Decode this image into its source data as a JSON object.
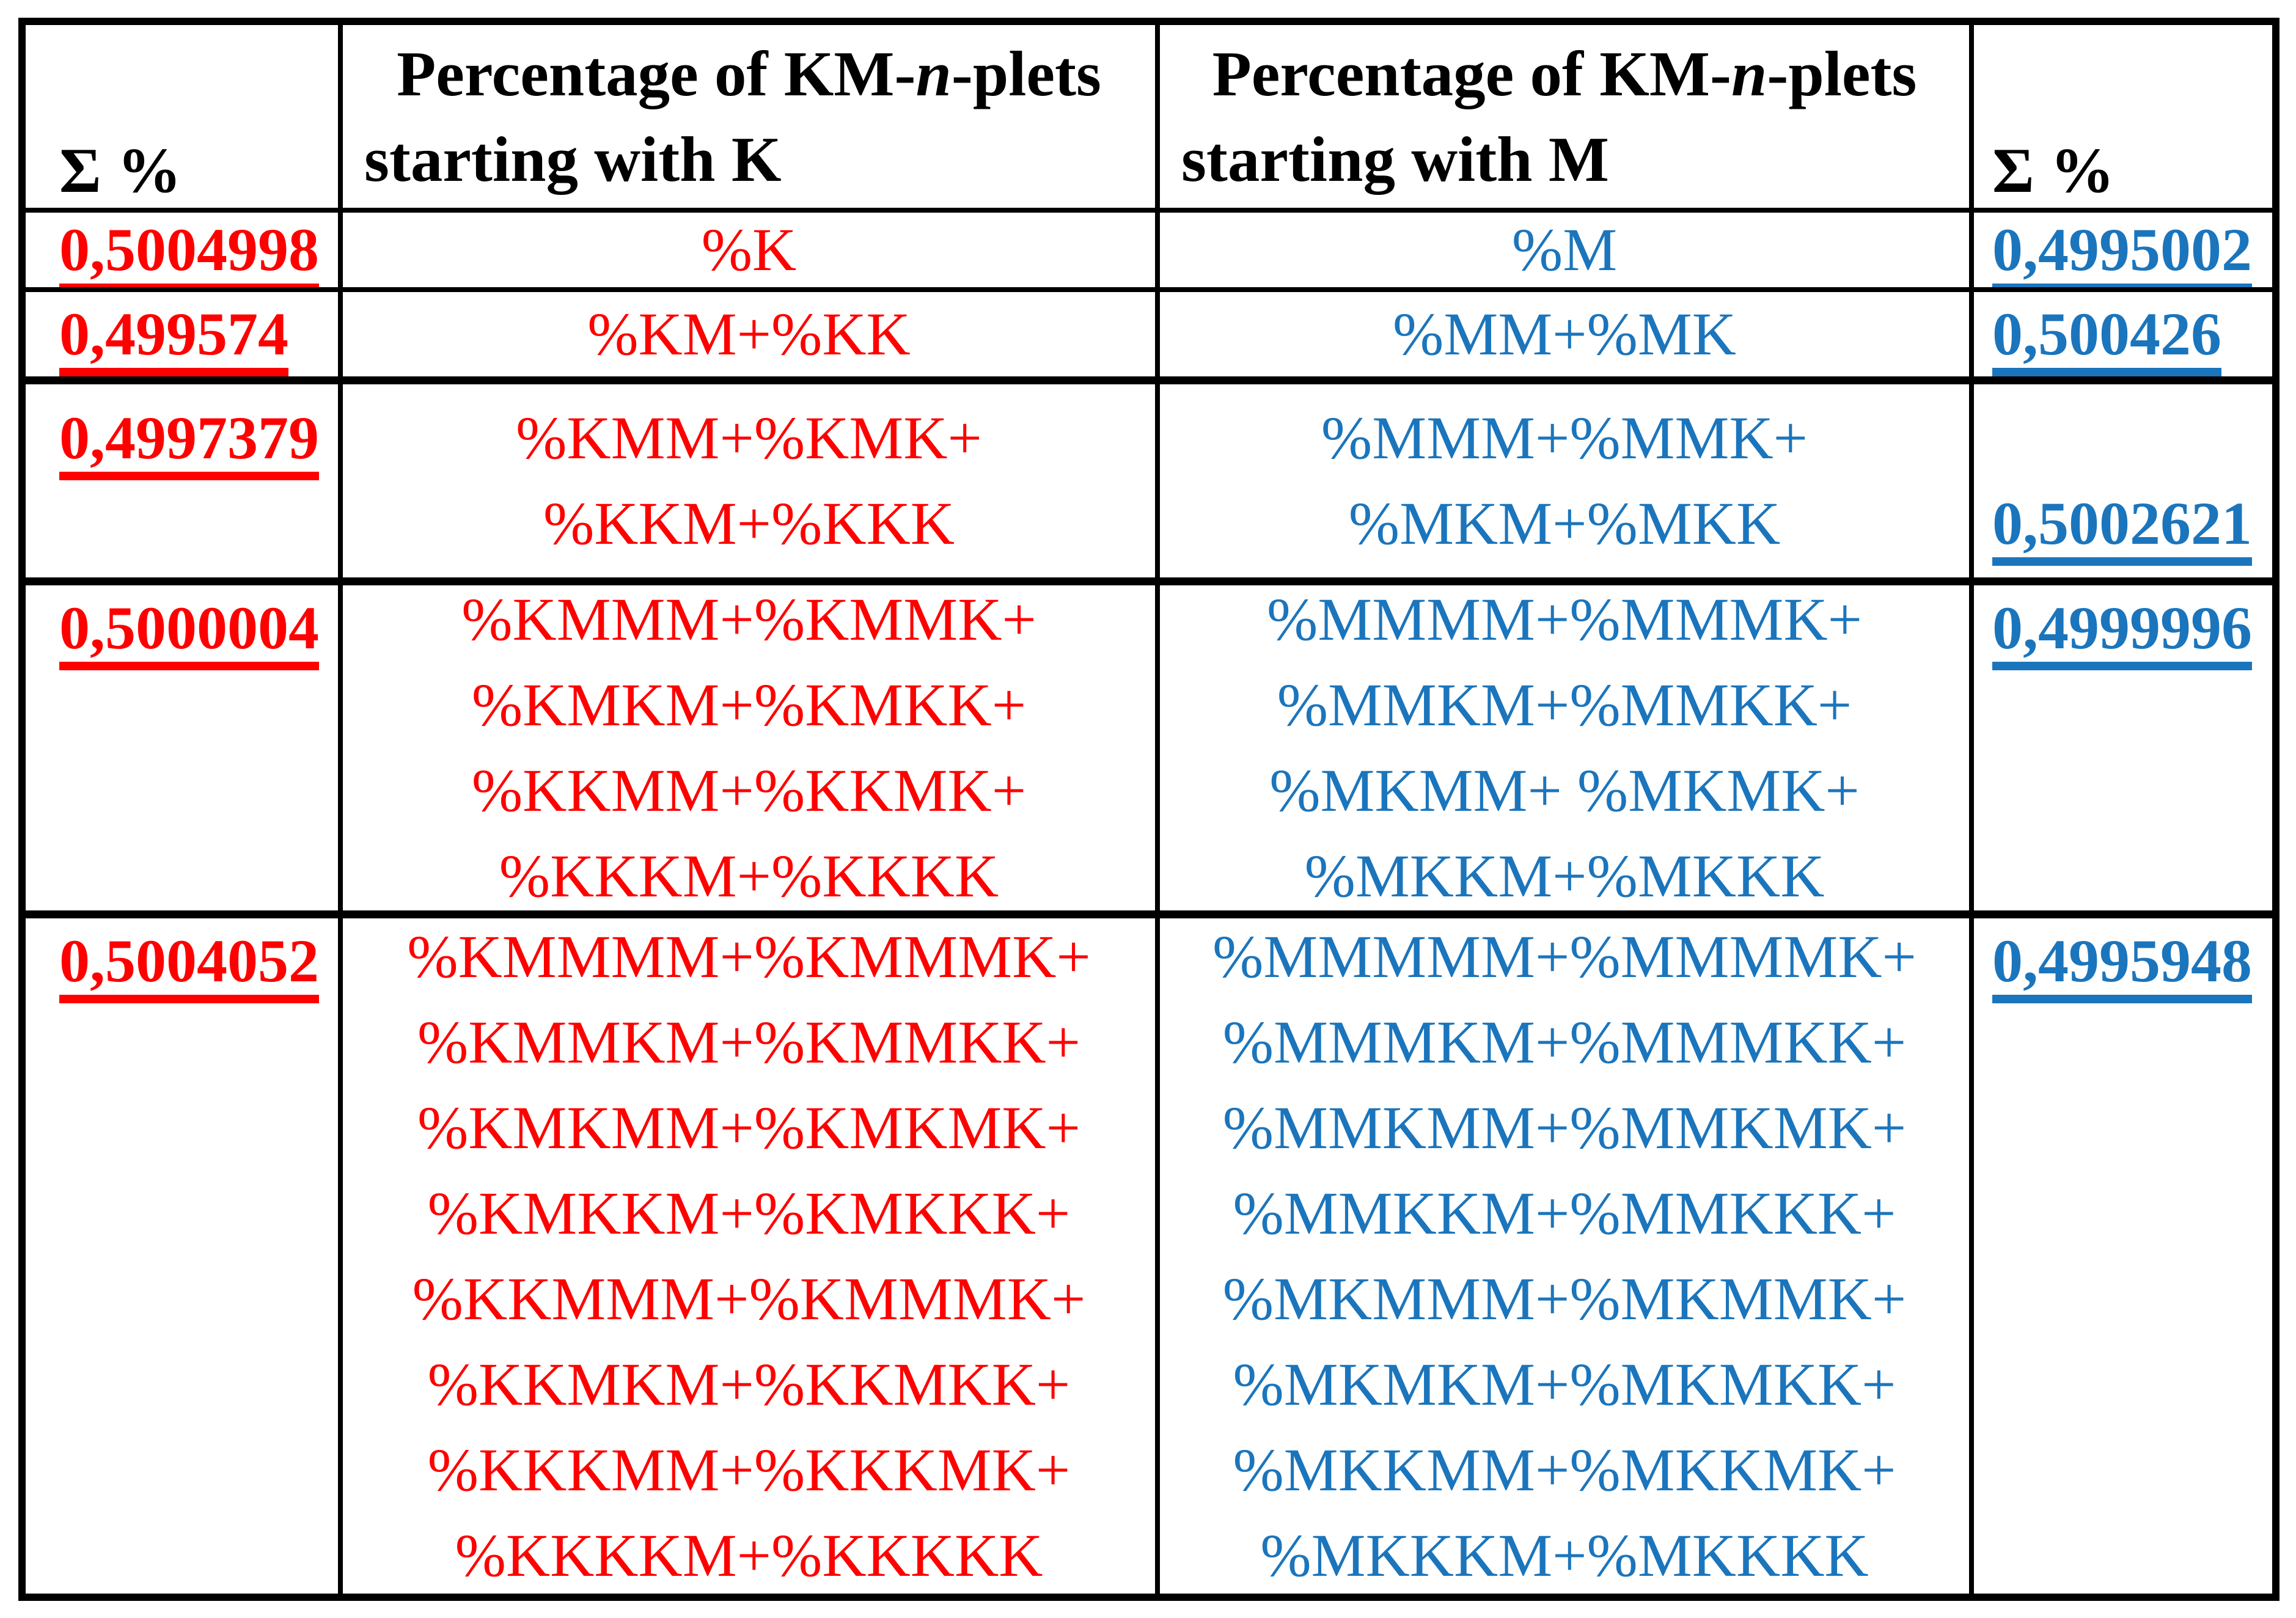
{
  "colors": {
    "red": "#FF0000",
    "blue": "#1B75BC",
    "border": "#000000",
    "background": "#FFFFFF"
  },
  "table": {
    "header": {
      "sigma_left": "Σ %",
      "sigma_right": "Σ %",
      "col_k": {
        "prefix": "Percentage of KM-",
        "n": "n",
        "suffix": "-plets",
        "line2": "starting with K"
      },
      "col_m": {
        "prefix": "Percentage of KM-",
        "n": "n",
        "suffix": "-plets",
        "line2": "starting with M"
      }
    },
    "rows": [
      {
        "sum_k": "0,5004998",
        "k_lines": [
          "%K"
        ],
        "m_lines": [
          "%M"
        ],
        "sum_m": "0,4995002"
      },
      {
        "sum_k": "0,499574",
        "k_lines": [
          "%KM+%KK"
        ],
        "m_lines": [
          "%MM+%MK"
        ],
        "sum_m": "0,500426"
      },
      {
        "sum_k": "0,4997379",
        "k_lines": [
          "%KMM+%KMK+",
          "%KKM+%KKK"
        ],
        "m_lines": [
          "%MMM+%MMK+",
          "%MKM+%MKK"
        ],
        "sum_m": "0,5002621"
      },
      {
        "sum_k": "0,5000004",
        "k_lines": [
          "%KMMM+%KMMK+",
          "%KMKM+%KMKK+",
          "%KKMM+%KKMK+",
          "%KKKM+%KKKK"
        ],
        "m_lines": [
          "%MMMM+%MMMK+",
          "%MMKM+%MMKK+",
          "%MKMM+ %MKMK+",
          "%MKKM+%MKKK"
        ],
        "sum_m": "0,4999996"
      },
      {
        "sum_k": "0,5004052",
        "k_lines": [
          "%KMMMM+%KMMMK+",
          "%KMMKM+%KMMKK+",
          "%KMKMM+%KMKMK+",
          "%KMKKM+%KMKKK+",
          "%KKMMM+%KMMMK+",
          "%KKMKM+%KKMKK+",
          "%KKKMM+%KKKMK+",
          "%KKKKM+%KKKKK"
        ],
        "m_lines": [
          "%MMMMM+%MMMMK+",
          "%MMMKM+%MMMKK+",
          "%MMKMM+%MMKMK+",
          "%MMKKM+%MMKKK+",
          "%MKMMM+%MKMMK+",
          "%MKMKM+%MKMKK+",
          "%MKKMM+%MKKMK+",
          "%MKKKM+%MKKKK"
        ],
        "sum_m": "0,4995948"
      }
    ]
  }
}
